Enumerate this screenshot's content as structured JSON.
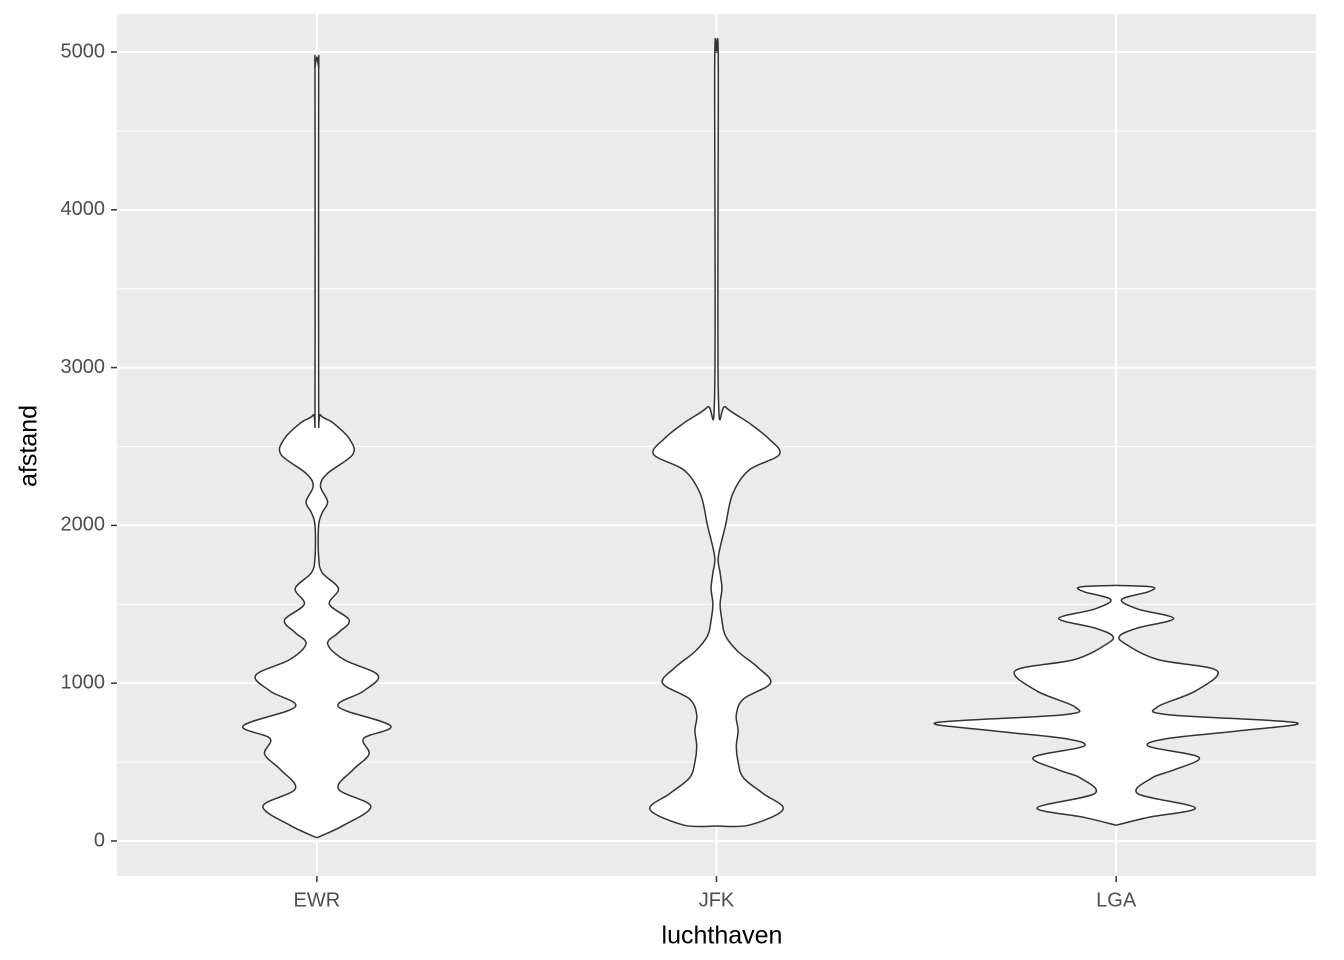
{
  "chart_data": {
    "type": "violin",
    "x_label": "luchthaven",
    "y_label": "afstand",
    "categories": [
      "EWR",
      "JFK",
      "LGA"
    ],
    "series": [
      {
        "name": "EWR",
        "y": [
          20,
          100,
          220,
          330,
          450,
          550,
          650,
          730,
          850,
          950,
          1050,
          1150,
          1250,
          1320,
          1400,
          1500,
          1600,
          1700,
          1800,
          2000,
          2080,
          2150,
          2250,
          2330,
          2450,
          2550,
          2650,
          2700,
          2800,
          4800,
          4900,
          4970
        ],
        "width": [
          0,
          0.15,
          0.3,
          0.12,
          0.2,
          0.29,
          0.26,
          0.41,
          0.12,
          0.26,
          0.34,
          0.15,
          0.06,
          0.12,
          0.18,
          0.07,
          0.12,
          0.03,
          0.01,
          0.01,
          0.03,
          0.06,
          0.02,
          0.06,
          0.2,
          0.18,
          0.09,
          0.02,
          0.01,
          0.01,
          0.01,
          0
        ]
      },
      {
        "name": "JFK",
        "y": [
          95,
          100,
          200,
          300,
          400,
          500,
          600,
          700,
          800,
          900,
          1000,
          1100,
          1200,
          1300,
          1400,
          1500,
          1600,
          1700,
          1800,
          2000,
          2200,
          2350,
          2450,
          2550,
          2650,
          2750,
          2850,
          4900,
          5000
        ],
        "width": [
          0,
          0.18,
          0.37,
          0.26,
          0.15,
          0.12,
          0.11,
          0.12,
          0.11,
          0.15,
          0.3,
          0.23,
          0.12,
          0.05,
          0.03,
          0.02,
          0.03,
          0.02,
          0.01,
          0.05,
          0.09,
          0.18,
          0.35,
          0.29,
          0.18,
          0.05,
          0.01,
          0.01,
          0
        ]
      },
      {
        "name": "LGA",
        "y": [
          100,
          150,
          210,
          300,
          400,
          450,
          530,
          600,
          650,
          700,
          750,
          800,
          850,
          950,
          1080,
          1150,
          1250,
          1300,
          1350,
          1410,
          1470,
          1530,
          1580,
          1610,
          1620
        ],
        "width": [
          0,
          0.18,
          0.44,
          0.12,
          0.2,
          0.32,
          0.46,
          0.18,
          0.29,
          0.7,
          1,
          0.29,
          0.23,
          0.44,
          0.56,
          0.23,
          0.05,
          0.02,
          0.12,
          0.32,
          0.12,
          0.03,
          0.18,
          0.2,
          0
        ]
      }
    ],
    "fill": "#ffffff",
    "line_color": "#333333",
    "ylim": [
      -222,
      5241
    ],
    "yticks": [
      0,
      1000,
      2000,
      3000,
      4000,
      5000
    ],
    "grid": true,
    "minor_grid": true,
    "panel_color": "#ebebeb"
  }
}
